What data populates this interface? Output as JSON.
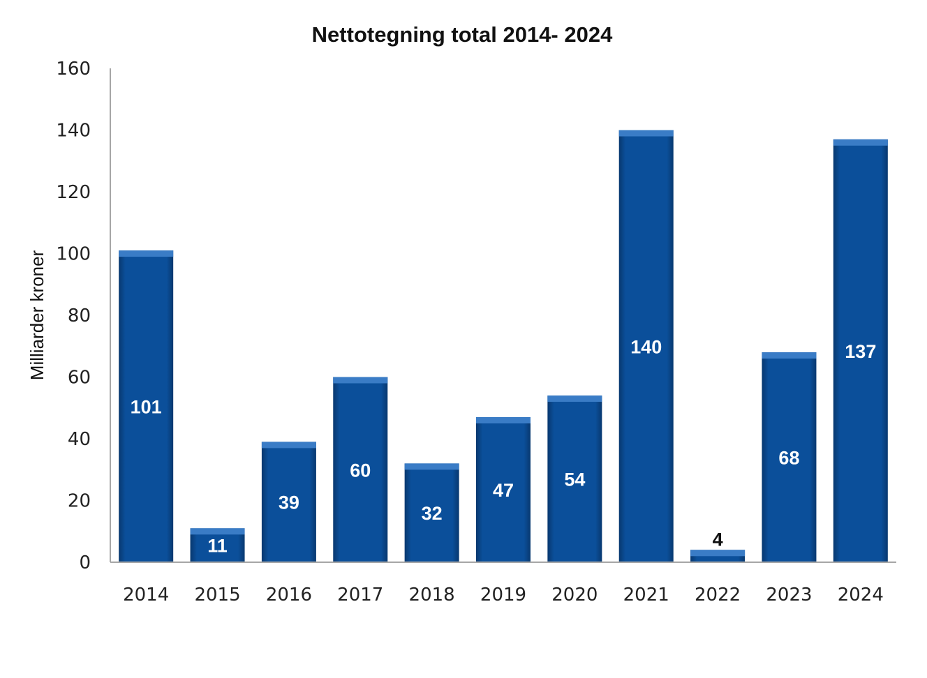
{
  "chart_data": {
    "type": "bar",
    "title": "Nettotegning total 2014- 2024",
    "ylabel": "Milliarder kroner",
    "xlabel": "",
    "ylim": [
      0,
      160
    ],
    "yticks": [
      0,
      20,
      40,
      60,
      80,
      100,
      120,
      140,
      160
    ],
    "categories": [
      "2014",
      "2015",
      "2016",
      "2017",
      "2018",
      "2019",
      "2020",
      "2021",
      "2022",
      "2023",
      "2024"
    ],
    "values": [
      101,
      11,
      39,
      60,
      32,
      47,
      54,
      140,
      4,
      68,
      137
    ],
    "grid": false,
    "legend": "none",
    "colors": {
      "bar": "#0b4f9a",
      "bar_dark": "#08386f",
      "bar_top": "#3a7cc6",
      "axis": "#a6a6a6",
      "label_inside": "#ffffff",
      "label_outside": "#111111"
    }
  }
}
